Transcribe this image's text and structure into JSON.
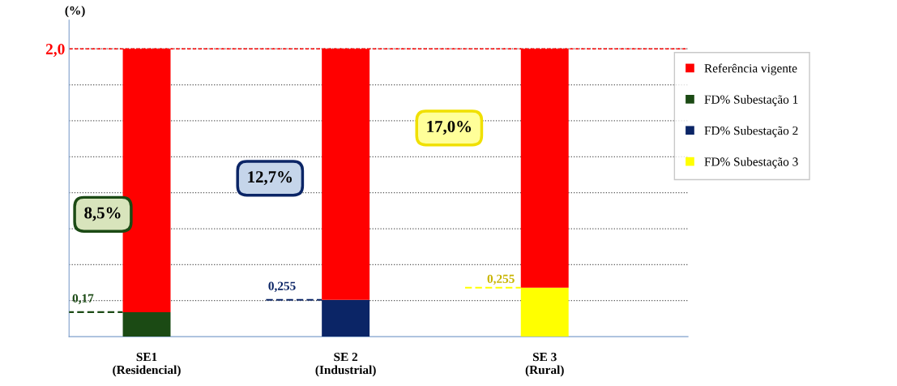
{
  "chart_data": {
    "type": "bar",
    "stacked": true,
    "ylabel": "(%)",
    "categories": [
      "SE1\n(Residencial)",
      "SE 2\n(Industrial)",
      "SE 3\n(Rural)"
    ],
    "series": [
      {
        "name": "FD% Subestação 1",
        "color": "#1b4a14",
        "values": [
          0.17,
          null,
          null
        ],
        "value_labels": [
          "0,17",
          null,
          null
        ]
      },
      {
        "name": "FD% Subestação 2",
        "color": "#0b2566",
        "values": [
          null,
          0.255,
          null
        ],
        "value_labels": [
          null,
          "0,255",
          null
        ]
      },
      {
        "name": "FD% Subestação 3",
        "color": "#ffff00",
        "values": [
          null,
          null,
          0.34
        ]
      },
      {
        "name": "Referência vigente",
        "color": "#ff0000",
        "values": [
          1.83,
          1.745,
          1.66
        ]
      }
    ],
    "ylim": [
      0,
      2.2
    ],
    "yticks": [
      {
        "value": 0.25,
        "label": null
      },
      {
        "value": 0.5,
        "label": null
      },
      {
        "value": 0.75,
        "label": null
      },
      {
        "value": 1.0,
        "label": null
      },
      {
        "value": 1.25,
        "label": null
      },
      {
        "value": 1.5,
        "label": null
      },
      {
        "value": 1.75,
        "label": null
      },
      {
        "value": 2.0,
        "label": "2,0"
      }
    ],
    "grid": "y",
    "ref_lines": [
      {
        "axis": "y",
        "value": 2.0,
        "label": null,
        "color": "#ff0000",
        "line_style": "dashed"
      }
    ],
    "annotations": [
      "8,5%",
      "12,7%",
      "17,0%",
      {
        "text": "0,255",
        "x": "SE 3\n(Rural)",
        "y": 0.34
      }
    ],
    "legend": "right"
  }
}
